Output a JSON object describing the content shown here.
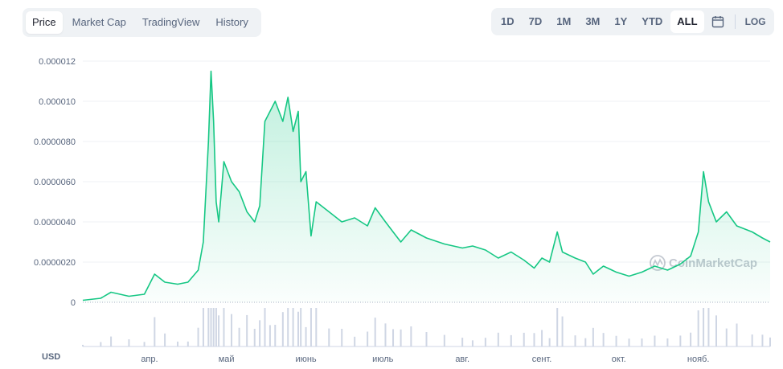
{
  "tabs": [
    {
      "label": "Price",
      "active": true
    },
    {
      "label": "Market Cap",
      "active": false
    },
    {
      "label": "TradingView",
      "active": false
    },
    {
      "label": "History",
      "active": false
    }
  ],
  "ranges": [
    {
      "label": "1D",
      "active": false
    },
    {
      "label": "7D",
      "active": false
    },
    {
      "label": "1M",
      "active": false
    },
    {
      "label": "3M",
      "active": false
    },
    {
      "label": "1Y",
      "active": false
    },
    {
      "label": "YTD",
      "active": false
    },
    {
      "label": "ALL",
      "active": true
    }
  ],
  "calendar_icon": "calendar-icon",
  "log_label": "LOG",
  "unit_label": "USD",
  "watermark": "CoinMarketCap",
  "colors": {
    "line": "#16c784",
    "grid": "#eff2f5",
    "volume": "#cfd6e4"
  },
  "chart_data": {
    "type": "area",
    "title": "",
    "xlabel": "",
    "ylabel": "",
    "ylim": [
      0,
      1.2e-05
    ],
    "xlim": [
      "2021-03-06",
      "2021-11-29"
    ],
    "yticks": [
      {
        "value": 0,
        "label": "0"
      },
      {
        "value": 2e-06,
        "label": "0.0000020"
      },
      {
        "value": 4e-06,
        "label": "0.0000040"
      },
      {
        "value": 6e-06,
        "label": "0.0000060"
      },
      {
        "value": 8e-06,
        "label": "0.0000080"
      },
      {
        "value": 1e-05,
        "label": "0.000010"
      },
      {
        "value": 1.2e-05,
        "label": "0.000012"
      }
    ],
    "xticks": [
      {
        "date": "2021-04-01",
        "label": "апр."
      },
      {
        "date": "2021-05-01",
        "label": "май"
      },
      {
        "date": "2021-06-01",
        "label": "июнь"
      },
      {
        "date": "2021-07-01",
        "label": "июль"
      },
      {
        "date": "2021-08-01",
        "label": "авг."
      },
      {
        "date": "2021-09-01",
        "label": "сент."
      },
      {
        "date": "2021-10-01",
        "label": "окт."
      },
      {
        "date": "2021-11-01",
        "label": "нояб."
      }
    ],
    "grid": true,
    "series": [
      {
        "values": [
          [
            "2021-03-06",
            1e-07
          ],
          [
            "2021-03-13",
            2e-07
          ],
          [
            "2021-03-17",
            5e-07
          ],
          [
            "2021-03-24",
            3e-07
          ],
          [
            "2021-03-30",
            4e-07
          ],
          [
            "2021-04-03",
            1.4e-06
          ],
          [
            "2021-04-07",
            1e-06
          ],
          [
            "2021-04-12",
            9e-07
          ],
          [
            "2021-04-16",
            1e-06
          ],
          [
            "2021-04-20",
            1.6e-06
          ],
          [
            "2021-04-22",
            3e-06
          ],
          [
            "2021-04-24",
            8e-06
          ],
          [
            "2021-04-25",
            1.15e-05
          ],
          [
            "2021-04-26",
            9e-06
          ],
          [
            "2021-04-27",
            5e-06
          ],
          [
            "2021-04-28",
            4e-06
          ],
          [
            "2021-04-30",
            7e-06
          ],
          [
            "2021-05-03",
            6e-06
          ],
          [
            "2021-05-06",
            5.5e-06
          ],
          [
            "2021-05-09",
            4.5e-06
          ],
          [
            "2021-05-12",
            4e-06
          ],
          [
            "2021-05-14",
            4.8e-06
          ],
          [
            "2021-05-16",
            9e-06
          ],
          [
            "2021-05-18",
            9.5e-06
          ],
          [
            "2021-05-20",
            1e-05
          ],
          [
            "2021-05-23",
            9e-06
          ],
          [
            "2021-05-25",
            1.02e-05
          ],
          [
            "2021-05-27",
            8.5e-06
          ],
          [
            "2021-05-29",
            9.5e-06
          ],
          [
            "2021-05-30",
            6e-06
          ],
          [
            "2021-06-01",
            6.5e-06
          ],
          [
            "2021-06-03",
            3.3e-06
          ],
          [
            "2021-06-05",
            5e-06
          ],
          [
            "2021-06-10",
            4.5e-06
          ],
          [
            "2021-06-15",
            4e-06
          ],
          [
            "2021-06-20",
            4.2e-06
          ],
          [
            "2021-06-25",
            3.8e-06
          ],
          [
            "2021-06-28",
            4.7e-06
          ],
          [
            "2021-07-02",
            4e-06
          ],
          [
            "2021-07-05",
            3.5e-06
          ],
          [
            "2021-07-08",
            3e-06
          ],
          [
            "2021-07-12",
            3.6e-06
          ],
          [
            "2021-07-18",
            3.2e-06
          ],
          [
            "2021-07-25",
            2.9e-06
          ],
          [
            "2021-08-01",
            2.7e-06
          ],
          [
            "2021-08-05",
            2.8e-06
          ],
          [
            "2021-08-10",
            2.6e-06
          ],
          [
            "2021-08-15",
            2.2e-06
          ],
          [
            "2021-08-20",
            2.5e-06
          ],
          [
            "2021-08-25",
            2.1e-06
          ],
          [
            "2021-08-29",
            1.7e-06
          ],
          [
            "2021-09-01",
            2.2e-06
          ],
          [
            "2021-09-04",
            2e-06
          ],
          [
            "2021-09-07",
            3.5e-06
          ],
          [
            "2021-09-09",
            2.5e-06
          ],
          [
            "2021-09-14",
            2.2e-06
          ],
          [
            "2021-09-18",
            2e-06
          ],
          [
            "2021-09-21",
            1.4e-06
          ],
          [
            "2021-09-25",
            1.8e-06
          ],
          [
            "2021-09-30",
            1.5e-06
          ],
          [
            "2021-10-05",
            1.3e-06
          ],
          [
            "2021-10-10",
            1.5e-06
          ],
          [
            "2021-10-15",
            1.8e-06
          ],
          [
            "2021-10-20",
            1.6e-06
          ],
          [
            "2021-10-25",
            1.9e-06
          ],
          [
            "2021-10-29",
            2.3e-06
          ],
          [
            "2021-11-01",
            3.5e-06
          ],
          [
            "2021-11-03",
            6.5e-06
          ],
          [
            "2021-11-05",
            5e-06
          ],
          [
            "2021-11-08",
            4e-06
          ],
          [
            "2021-11-12",
            4.5e-06
          ],
          [
            "2021-11-16",
            3.8e-06
          ],
          [
            "2021-11-22",
            3.5e-06
          ],
          [
            "2021-11-26",
            3.2e-06
          ],
          [
            "2021-11-29",
            3e-06
          ]
        ]
      }
    ]
  }
}
